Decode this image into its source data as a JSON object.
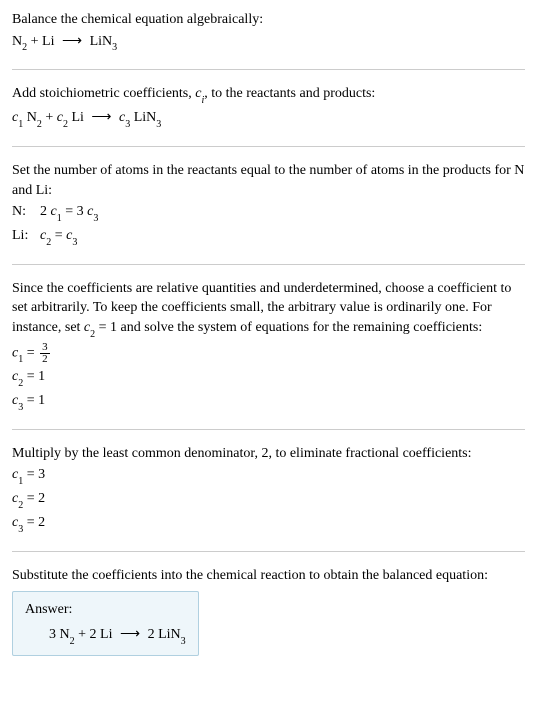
{
  "text": {
    "intro": "Balance the chemical equation algebraically:",
    "step2": "Add stoichiometric coefficients, ",
    "step2_ci": "c",
    "step2_i": "i",
    "step2_end": ", to the reactants and products:",
    "step3": "Set the number of atoms in the reactants equal to the number of atoms in the products for N and Li:",
    "N_label": "N:",
    "Li_label": "Li:",
    "step4": "Since the coefficients are relative quantities and underdetermined, choose a coefficient to set arbitrarily. To keep the coefficients small, the arbitrary value is ordinarily one. For instance, set ",
    "step4_var": "c",
    "step4_sub": "2",
    "step4_mid": " = 1 and solve the system of equations for the remaining coefficients:",
    "step5": "Multiply by the least common denominator, 2, to eliminate fractional coefficients:",
    "step6": "Substitute the coefficients into the chemical reaction to obtain the balanced equation:",
    "answer_label": "Answer:"
  },
  "chem": {
    "N": "N",
    "Li": "Li",
    "LiN": "LiN",
    "two": "2",
    "three": "3",
    "arrow": "⟶"
  },
  "coef": {
    "c": "c",
    "c1": "1",
    "c2": "2",
    "c3": "3"
  },
  "eq": {
    "n_eq": "2 ",
    "n_mid": " = 3 ",
    "li_mid": " = ",
    "c1_frac_num": "3",
    "c1_frac_den": "2",
    "eq1": " = 1",
    "c1_3": " = 3",
    "c2_2": " = 2",
    "c3_2": " = 2"
  },
  "final": {
    "coef1": "3 ",
    "plus": " + ",
    "coef2": "2 ",
    "coef3": "2 "
  },
  "colors": {
    "answer_bg": "#eef6fa",
    "answer_border": "#b0d0e0",
    "divider": "#cccccc"
  }
}
